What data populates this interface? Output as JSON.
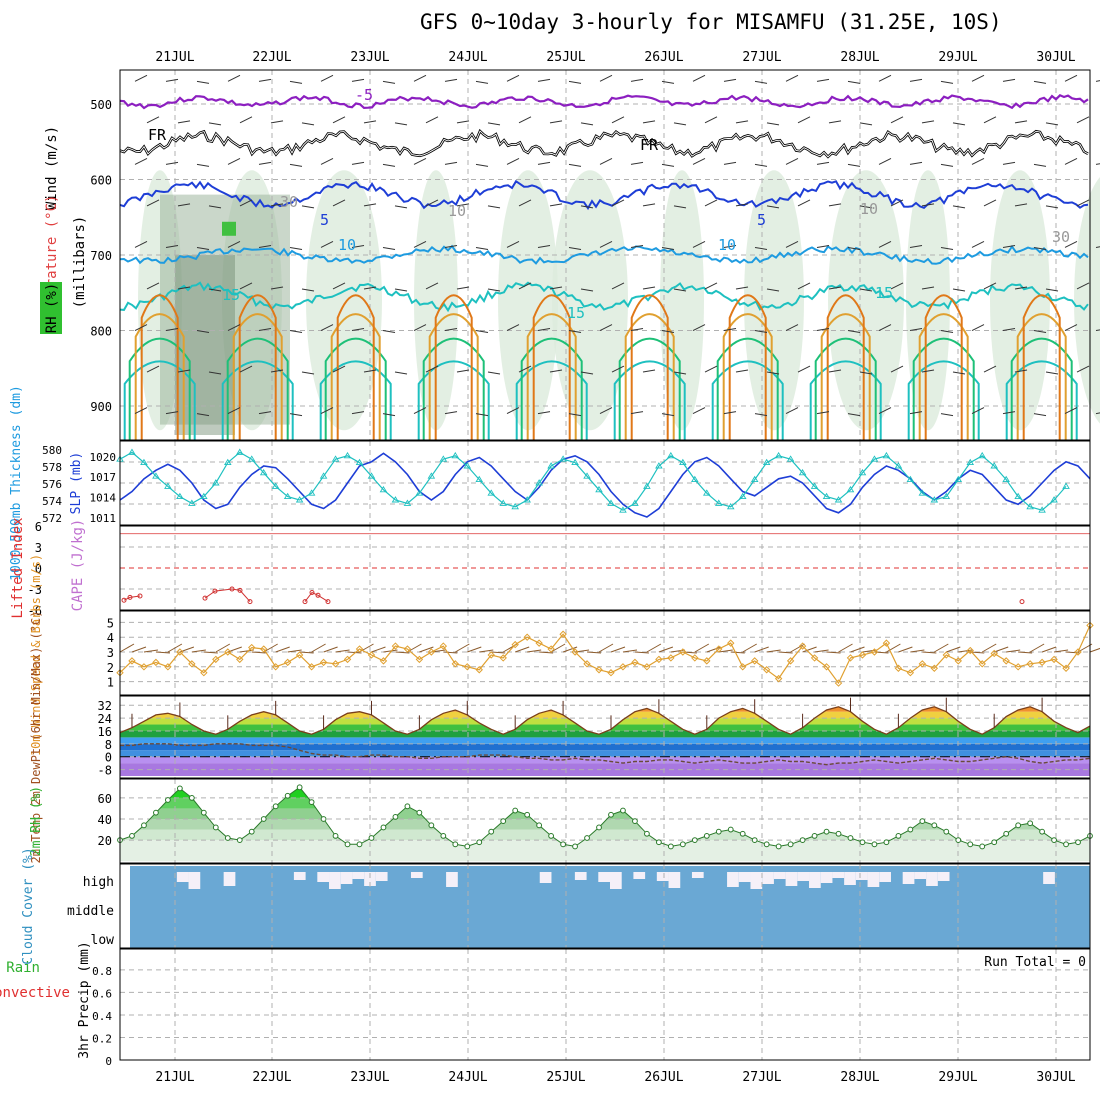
{
  "title": "GFS 0~10day 3-hourly for MISAMFU (31.25E, 10S)",
  "dates": [
    "21JUL",
    "22JUL",
    "23JUL",
    "24JUL",
    "25JUL",
    "26JUL",
    "27JUL",
    "28JUL",
    "29JUL",
    "30JUL"
  ],
  "colors": {
    "purple": "#8c1fc0",
    "blue": "#1e3ed6",
    "ltblue": "#1e9be0",
    "teal": "#1ec0c0",
    "green": "#1ec078",
    "orange": "#e0a030",
    "dkorange": "#e07818",
    "rh": "#b0d8b0",
    "grid": "#a0a0a0"
  },
  "chart_data": [
    {
      "panel": "upper-air",
      "type": "contour",
      "ylabel_parts": [
        "Wind (m/s)",
        "Temperature (°C)",
        "RH (%)"
      ],
      "yunit": "(millibars)",
      "yticks": [
        500,
        600,
        700,
        800,
        900
      ],
      "ylim": [
        455,
        945
      ],
      "contour_labels": [
        "-5",
        "FR",
        "FR",
        "5",
        "5",
        "10",
        "10",
        "15",
        "15",
        "15",
        "10",
        "10",
        "30",
        "30"
      ]
    },
    {
      "panel": "thickness-slp",
      "type": "line",
      "ylabel_left": "1000-500mb Thickness (dm)",
      "ylabel_right": "SLP (mb)",
      "yticks_left": [
        580,
        578,
        576,
        574,
        572
      ],
      "yticks_right": [
        1020,
        1017,
        1014,
        1011
      ],
      "series": [
        {
          "name": "1000-500mb Thickness (dm)",
          "color": "#1e3ed6",
          "values": [
            574.0,
            575.0,
            576.5,
            577.5,
            578.2,
            577.5,
            576.0,
            574.0,
            573.0,
            573.5,
            575.5,
            577.0,
            578.0,
            577.8,
            576.5,
            575.0,
            573.5,
            573.0,
            574.0,
            576.0,
            578.0,
            578.5,
            579.5,
            578.5,
            577.0,
            575.0,
            574.0,
            575.0,
            577.0,
            578.5,
            579.0,
            578.0,
            576.5,
            575.0,
            574.0,
            575.5,
            577.5,
            578.8,
            579.2,
            578.5,
            577.0,
            575.0,
            573.5,
            572.5,
            572.0,
            573.0,
            575.0,
            577.0,
            578.5,
            579.0,
            578.0,
            576.5,
            575.0,
            574.5,
            575.5,
            576.5,
            576.8,
            576.0,
            574.5,
            573.0,
            572.5,
            573.5,
            575.5,
            577.0,
            578.0,
            577.5,
            576.5,
            575.0,
            574.0,
            575.0,
            576.5,
            577.5,
            577.0,
            575.5,
            574.0,
            573.5,
            574.5,
            576.0,
            577.5,
            578.5,
            578.0,
            576.5
          ]
        },
        {
          "name": "SLP (mb)",
          "color": "#1ec0c0",
          "values": [
            1019.5,
            1020.5,
            1019.0,
            1017.0,
            1015.5,
            1014.0,
            1013.0,
            1014.0,
            1016.0,
            1019.0,
            1020.5,
            1019.5,
            1017.5,
            1015.5,
            1014.0,
            1013.5,
            1014.5,
            1017.0,
            1019.5,
            1020.0,
            1019.0,
            1017.0,
            1015.0,
            1013.5,
            1013.0,
            1014.5,
            1017.0,
            1019.5,
            1020.0,
            1018.5,
            1016.5,
            1014.5,
            1013.0,
            1012.5,
            1013.5,
            1016.0,
            1018.5,
            1019.5,
            1019.0,
            1017.0,
            1015.0,
            1013.0,
            1012.0,
            1013.0,
            1015.5,
            1018.5,
            1020.0,
            1019.0,
            1016.5,
            1014.5,
            1013.0,
            1012.5,
            1014.0,
            1016.5,
            1019.0,
            1020.0,
            1019.5,
            1017.5,
            1015.5,
            1014.0,
            1013.5,
            1015.0,
            1017.5,
            1019.5,
            1020.0,
            1018.5,
            1016.5,
            1014.5,
            1013.5,
            1014.0,
            1016.5,
            1019.0,
            1020.0,
            1018.5,
            1016.5,
            1014.0,
            1012.5,
            1012.0,
            1013.5,
            1015.5
          ]
        }
      ]
    },
    {
      "panel": "stability",
      "type": "line",
      "ylabel_left": "Lifted Index",
      "ylabel_right": "CAPE (J/kg)",
      "yticks": [
        6,
        3,
        0,
        -3,
        -6
      ],
      "series": [
        {
          "name": "Lifted Index",
          "color": "#d03030",
          "values": [
            4.6,
            4.2,
            4.0,
            null,
            null,
            null,
            null,
            null,
            null,
            null,
            null,
            4.3,
            3.3,
            3.0,
            3.2,
            4.8,
            null,
            null,
            null,
            null,
            null,
            null,
            null,
            4.8,
            3.5,
            3.9,
            4.8
          ]
        }
      ]
    },
    {
      "panel": "10m-wind",
      "type": "line",
      "ylabel": "10m Wind Speed & Barbs (m/s)",
      "yticks": [
        1,
        2,
        3,
        4,
        5
      ],
      "series": [
        {
          "name": "10m Wind Speed",
          "color": "#e0a030",
          "values": [
            1.6,
            2.4,
            2.0,
            2.3,
            2.0,
            3.0,
            2.2,
            1.6,
            2.5,
            3.0,
            2.5,
            3.3,
            3.2,
            2.0,
            2.3,
            2.8,
            2.0,
            2.3,
            2.2,
            2.5,
            3.2,
            2.8,
            2.4,
            3.4,
            3.2,
            2.5,
            3.0,
            3.4,
            2.2,
            2.0,
            1.8,
            2.8,
            2.6,
            3.5,
            4.0,
            3.6,
            3.2,
            4.2,
            3.0,
            2.2,
            1.8,
            1.6,
            2.0,
            2.3,
            2.0,
            2.5,
            2.6,
            3.0,
            2.6,
            2.4,
            3.2,
            3.6,
            2.0,
            2.4,
            1.8,
            1.2,
            2.4,
            3.4,
            2.6,
            2.0,
            0.9,
            2.6,
            2.8,
            3.0,
            3.6,
            1.9,
            1.6,
            2.2,
            1.9,
            2.8,
            2.4,
            3.1,
            2.2,
            2.9,
            2.4,
            2.0,
            2.2,
            2.3,
            2.5,
            1.9,
            3.0,
            4.8
          ]
        }
      ]
    },
    {
      "panel": "2m-temp",
      "type": "area",
      "ylabel": "2m Temp 2m DewPt (6hr Min/Max) (°C)",
      "yticks": [
        32,
        24,
        16,
        8,
        0,
        -8
      ],
      "series": [
        {
          "name": "2m Temp",
          "color": "#8b4513",
          "values": [
            15,
            18,
            22,
            26,
            27,
            25,
            20,
            16,
            14,
            17,
            22,
            26,
            28,
            26,
            21,
            16,
            14,
            17,
            23,
            27,
            28,
            26,
            21,
            16,
            14,
            17,
            23,
            27,
            29,
            26,
            21,
            17,
            14,
            17,
            23,
            27,
            29,
            26,
            21,
            16,
            14,
            17,
            23,
            28,
            30,
            27,
            22,
            17,
            14,
            17,
            24,
            28,
            30,
            27,
            22,
            17,
            14,
            18,
            24,
            29,
            31,
            28,
            22,
            17,
            14,
            18,
            24,
            29,
            31,
            28,
            22,
            17,
            14,
            18,
            25,
            29,
            31,
            28,
            22,
            18,
            15,
            19
          ]
        },
        {
          "name": "2m DewPt",
          "color": "#6a4a3a",
          "values": [
            7,
            7,
            8,
            8,
            8,
            7,
            7,
            7,
            8,
            8,
            8,
            7,
            7,
            7,
            6,
            4,
            2,
            1,
            1,
            0,
            0,
            1,
            1,
            0,
            0,
            -1,
            -1,
            0,
            0,
            0,
            1,
            1,
            1,
            0,
            -1,
            -1,
            -2,
            -2,
            -1,
            -2,
            -2,
            -3,
            -4,
            -3,
            -3,
            -2,
            -2,
            -3,
            -4,
            -3,
            -2,
            -3,
            -4,
            -4,
            -3,
            -2,
            -3,
            -3,
            -4,
            -5,
            -4,
            -4,
            -3,
            -2,
            -3,
            -4,
            -3,
            -2,
            -1,
            -2,
            -3,
            -3,
            -2,
            -1,
            0,
            -1,
            -3,
            -4,
            -3,
            -2,
            -2,
            -1
          ]
        }
      ]
    },
    {
      "panel": "2m-rh",
      "type": "area",
      "ylabel": "2m RH (%)",
      "yticks": [
        20,
        40,
        60
      ],
      "series": [
        {
          "name": "2m RH",
          "color": "#2a8a2a",
          "values": [
            20,
            24,
            34,
            46,
            58,
            69,
            60,
            46,
            32,
            22,
            20,
            28,
            40,
            52,
            62,
            70,
            56,
            40,
            24,
            16,
            16,
            22,
            32,
            42,
            52,
            46,
            34,
            24,
            16,
            14,
            18,
            28,
            38,
            48,
            44,
            34,
            24,
            16,
            14,
            22,
            32,
            44,
            48,
            38,
            26,
            18,
            14,
            16,
            20,
            24,
            28,
            30,
            26,
            20,
            16,
            14,
            16,
            20,
            24,
            28,
            26,
            22,
            18,
            16,
            18,
            24,
            30,
            38,
            34,
            28,
            20,
            16,
            14,
            18,
            26,
            34,
            36,
            28,
            20,
            16,
            18,
            24
          ]
        }
      ]
    },
    {
      "panel": "cloud-cover",
      "type": "heatmap",
      "ylabel": "Cloud Cover (%)",
      "ylevels": [
        "high",
        "middle",
        "low"
      ],
      "series": [
        {
          "name": "high cloud gaps",
          "values": [
            0,
            0,
            0,
            0,
            1,
            1,
            0,
            0,
            1,
            0,
            0,
            0,
            0,
            0,
            1,
            0,
            1,
            1,
            1,
            1,
            1,
            1,
            0,
            0,
            1,
            0,
            0,
            1,
            0,
            0,
            0,
            0,
            0,
            0,
            0,
            1,
            0,
            0,
            1,
            0,
            1,
            1,
            0,
            1,
            0,
            1,
            1,
            0,
            1,
            0,
            0,
            1,
            1,
            1,
            1,
            1,
            1,
            1,
            1,
            1,
            1,
            1,
            1,
            1,
            1,
            0,
            1,
            1,
            1,
            1,
            0,
            0,
            0,
            0,
            0,
            0,
            0,
            0,
            1,
            0,
            0,
            0
          ]
        }
      ]
    },
    {
      "panel": "precip",
      "type": "bar",
      "ylabel_parts": [
        "Total / Rain",
        "Convective",
        "3hr Precip (mm)"
      ],
      "yticks": [
        0,
        0.2,
        0.4,
        0.6,
        0.8
      ],
      "run_total": "Run Total = 0"
    }
  ]
}
